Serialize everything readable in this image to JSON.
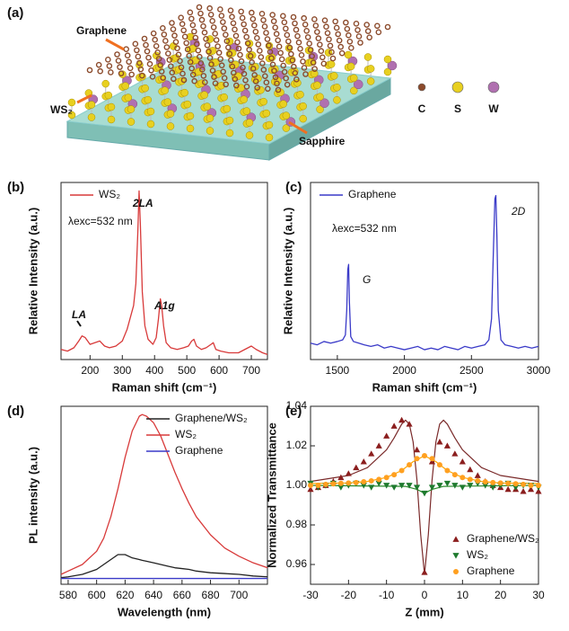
{
  "schematic": {
    "panel": "(a)",
    "labels": {
      "graphene": "Graphene",
      "ws2": "WS₂",
      "sapphire": "Sapphire"
    },
    "legend": [
      {
        "label": "C",
        "color": "#8b4a2b"
      },
      {
        "label": "S",
        "color": "#e8d020"
      },
      {
        "label": "W",
        "color": "#b070b0"
      }
    ]
  },
  "chart_data": [
    {
      "panel": "(b)",
      "type": "line",
      "x": [
        110,
        130,
        150,
        165,
        175,
        185,
        200,
        215,
        230,
        245,
        260,
        280,
        300,
        315,
        325,
        335,
        342,
        348,
        352,
        356,
        362,
        370,
        380,
        395,
        405,
        412,
        418,
        422,
        428,
        436,
        450,
        470,
        490,
        505,
        515,
        522,
        530,
        545,
        560,
        575,
        582,
        590,
        605,
        630,
        660,
        680,
        700,
        715,
        735,
        750
      ],
      "series": [
        {
          "name": "WS₂",
          "color": "#d83a3a",
          "values": [
            6,
            5,
            7,
            11,
            14,
            13,
            9,
            10,
            11,
            8,
            7,
            8,
            11,
            18,
            25,
            32,
            45,
            75,
            100,
            80,
            40,
            20,
            12,
            9,
            13,
            24,
            36,
            32,
            20,
            10,
            7,
            6,
            7,
            8,
            11,
            12,
            8,
            6,
            7,
            9,
            10,
            6,
            5,
            4,
            4,
            6,
            8,
            6,
            4,
            3
          ]
        }
      ],
      "xlim": [
        110,
        750
      ],
      "xticks": [
        200,
        300,
        400,
        500,
        600,
        700
      ],
      "ylim": [
        0,
        105
      ],
      "xlabel": "Raman shift (cm⁻¹)",
      "ylabel": "Relative Intensity (a.u.)",
      "annotations": [
        "λexc=532 nm",
        "LA",
        "2LA",
        "A1g"
      ],
      "legend": "upper left"
    },
    {
      "panel": "(c)",
      "type": "line",
      "x": [
        1300,
        1350,
        1400,
        1450,
        1500,
        1540,
        1560,
        1570,
        1578,
        1584,
        1590,
        1600,
        1620,
        1660,
        1700,
        1750,
        1800,
        1850,
        1900,
        1950,
        2000,
        2050,
        2100,
        2150,
        2200,
        2250,
        2300,
        2350,
        2400,
        2450,
        2500,
        2550,
        2600,
        2630,
        2650,
        2665,
        2675,
        2682,
        2690,
        2700,
        2720,
        2750,
        2800,
        2850,
        2900,
        2950,
        3000
      ],
      "series": [
        {
          "name": "Graphene",
          "color": "#3a3ac8",
          "values": [
            10,
            9,
            11,
            10,
            11,
            12,
            15,
            30,
            55,
            58,
            35,
            14,
            11,
            10,
            9,
            8,
            9,
            7,
            8,
            7,
            6,
            7,
            8,
            6,
            7,
            6,
            8,
            7,
            6,
            8,
            7,
            8,
            9,
            12,
            25,
            70,
            98,
            100,
            75,
            30,
            12,
            9,
            8,
            7,
            8,
            7,
            8
          ]
        }
      ],
      "xlim": [
        1300,
        3000
      ],
      "xticks": [
        1500,
        2000,
        2500,
        3000
      ],
      "ylim": [
        0,
        108
      ],
      "xlabel": "Raman shift (cm⁻¹)",
      "ylabel": "Relative Intensity (a.u.)",
      "annotations": [
        "λexc=532 nm",
        "G",
        "2D"
      ],
      "legend": "upper left"
    },
    {
      "panel": "(d)",
      "type": "line",
      "x": [
        575,
        580,
        590,
        600,
        605,
        610,
        615,
        620,
        625,
        630,
        632,
        635,
        640,
        645,
        650,
        655,
        660,
        665,
        670,
        680,
        690,
        700,
        710,
        720
      ],
      "series": [
        {
          "name": "Graphene/WS₂",
          "color": "#222222",
          "values": [
            1,
            1.5,
            3,
            6,
            9,
            12,
            15,
            15,
            13,
            12,
            11.5,
            11,
            10,
            9,
            8,
            7,
            6.5,
            6,
            5,
            4,
            3.5,
            3,
            2,
            1.5
          ]
        },
        {
          "name": "WS₂",
          "color": "#d83a3a",
          "values": [
            3,
            5,
            9,
            17,
            25,
            38,
            55,
            74,
            90,
            99,
            100,
            99,
            95,
            87,
            76,
            65,
            55,
            46,
            38,
            27,
            19,
            14,
            10,
            7
          ]
        },
        {
          "name": "Graphene",
          "color": "#3a3ac8",
          "values": [
            0.5,
            0.5,
            0.5,
            0.5,
            0.5,
            0.5,
            0.5,
            0.5,
            0.5,
            0.5,
            0.5,
            0.5,
            0.5,
            0.5,
            0.5,
            0.5,
            0.5,
            0.5,
            0.5,
            0.5,
            0.5,
            0.5,
            0.5,
            0.5
          ]
        }
      ],
      "xlim": [
        575,
        720
      ],
      "xticks": [
        580,
        600,
        620,
        640,
        660,
        680,
        700
      ],
      "ylim": [
        -3,
        105
      ],
      "xlabel": "Wavelength (nm)",
      "ylabel": "PL intensity (a.u.)",
      "legend": "upper right"
    },
    {
      "panel": "(e)",
      "type": "scatter",
      "x": [
        -30,
        -28,
        -26,
        -24,
        -22,
        -20,
        -18,
        -16,
        -14,
        -12,
        -10,
        -8,
        -6,
        -4,
        -2,
        0,
        2,
        4,
        6,
        8,
        10,
        12,
        14,
        16,
        18,
        20,
        22,
        24,
        26,
        28,
        30
      ],
      "series": [
        {
          "name": "Graphene/WS₂",
          "color": "#8b1e1e",
          "marker": "triangle-up",
          "values": [
            0.998,
            0.999,
            1.0,
            1.002,
            1.004,
            1.006,
            1.009,
            1.012,
            1.016,
            1.02,
            1.025,
            1.03,
            1.033,
            1.031,
            1.018,
            0.956,
            1.012,
            1.022,
            1.02,
            1.016,
            1.012,
            1.008,
            1.005,
            1.002,
            1.0,
            0.999,
            0.998,
            0.998,
            0.997,
            0.998,
            0.997
          ]
        },
        {
          "name": "WS₂",
          "color": "#1e7a2e",
          "marker": "triangle-down",
          "values": [
            1.001,
            0.999,
            1.0,
            1.001,
            0.999,
            1.0,
            1.001,
            1.0,
            0.999,
            1.001,
            1.0,
            0.999,
            1.0,
            1.0,
            0.999,
            0.996,
            0.999,
            1.0,
            1.001,
            1.0,
            0.999,
            1.0,
            1.001,
            1.0,
            0.999,
            1.0,
            1.001,
            0.999,
            1.0,
            1.0,
            0.999
          ]
        },
        {
          "name": "Graphene",
          "color": "#ffa020",
          "marker": "circle",
          "values": [
            1.0,
            1.0,
            1.0005,
            1.0008,
            1.001,
            1.0012,
            1.0014,
            1.0018,
            1.0023,
            1.003,
            1.004,
            1.0054,
            1.0075,
            1.0104,
            1.0135,
            1.015,
            1.0135,
            1.0104,
            1.0075,
            1.0054,
            1.004,
            1.003,
            1.0023,
            1.0018,
            1.0014,
            1.0012,
            1.001,
            1.0008,
            1.0005,
            1.0,
            1.0
          ]
        }
      ],
      "fits": [
        {
          "color": "#7a2a2a",
          "x": [
            -30,
            -20,
            -15,
            -10,
            -8,
            -6,
            -5,
            -4,
            -3,
            -2,
            -1,
            0,
            1,
            2,
            3,
            4,
            5,
            6,
            8,
            10,
            15,
            20,
            30
          ],
          "values": [
            1.002,
            1.005,
            1.009,
            1.018,
            1.024,
            1.031,
            1.033,
            1.031,
            1.022,
            1.003,
            0.975,
            0.955,
            0.975,
            1.003,
            1.022,
            1.031,
            1.033,
            1.031,
            1.024,
            1.018,
            1.009,
            1.005,
            1.002
          ]
        },
        {
          "color": "#2a8a2a",
          "x": [
            -30,
            -5,
            -2,
            0,
            2,
            5,
            30
          ],
          "values": [
            1.0,
            0.9995,
            0.998,
            0.996,
            0.998,
            0.9995,
            1.0
          ]
        },
        {
          "color": "#ffa500",
          "x": [
            -30,
            -20,
            -15,
            -10,
            -6,
            -3,
            0,
            3,
            6,
            10,
            15,
            20,
            30
          ],
          "values": [
            1.001,
            1.0012,
            1.002,
            1.004,
            1.0075,
            1.012,
            1.015,
            1.012,
            1.0075,
            1.004,
            1.002,
            1.0012,
            1.001
          ]
        }
      ],
      "xlim": [
        -30,
        30
      ],
      "xticks": [
        -30,
        -20,
        -10,
        0,
        10,
        20,
        30
      ],
      "ylim": [
        0.95,
        1.04
      ],
      "yticks": [
        0.96,
        0.98,
        {
          "value": 1,
          "label": "1.00"
        },
        1.02,
        1.04
      ],
      "xlabel": "Z (mm)",
      "ylabel": "Normalized Transmittance",
      "legend": "lower right"
    }
  ]
}
